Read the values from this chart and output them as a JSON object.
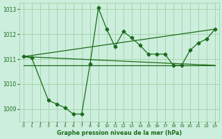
{
  "line1_x": [
    0,
    1,
    3,
    4,
    5,
    6,
    7,
    8,
    9,
    10,
    11,
    12,
    13,
    14,
    15,
    16,
    17,
    18,
    19,
    20,
    21,
    22,
    23
  ],
  "line1_y": [
    1011.1,
    1011.05,
    1009.35,
    1009.2,
    1009.05,
    1008.8,
    1008.8,
    1010.8,
    1013.05,
    1012.2,
    1011.5,
    1012.1,
    1011.85,
    1011.55,
    1011.2,
    1011.2,
    1011.2,
    1010.75,
    1010.75,
    1011.35,
    1011.65,
    1011.8,
    1012.2
  ],
  "line2_x": [
    0,
    23
  ],
  "line2_y": [
    1010.75,
    1010.75
  ],
  "line3_x": [
    0,
    23
  ],
  "line3_y": [
    1011.1,
    1012.2
  ],
  "line4_x": [
    0,
    23
  ],
  "line4_y": [
    1011.1,
    1010.75
  ],
  "bg_color": "#cceedd",
  "line_color": "#1a6b1a",
  "grid_color": "#99cc99",
  "xlabel": "Graphe pression niveau de la mer (hPa)",
  "ylim": [
    1008.5,
    1013.25
  ],
  "xlim": [
    -0.5,
    23.5
  ],
  "yticks": [
    1009,
    1010,
    1011,
    1012,
    1013
  ],
  "xticks": [
    0,
    1,
    2,
    3,
    4,
    5,
    6,
    7,
    8,
    9,
    10,
    11,
    12,
    13,
    14,
    15,
    16,
    17,
    18,
    19,
    20,
    21,
    22,
    23
  ]
}
